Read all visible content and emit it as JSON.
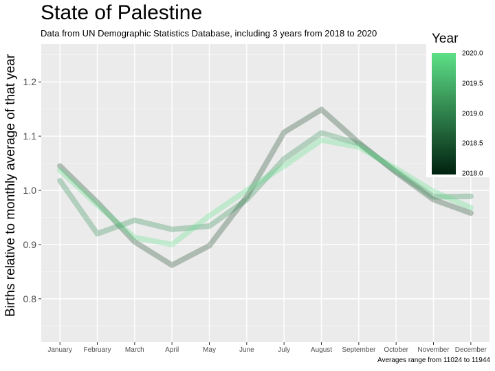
{
  "title": "State of Palestine",
  "subtitle": "Data from UN Demographic Statistics Database, including 3 years from 2018 to 2020",
  "caption": "Averages range from 11024 to 11944",
  "legend": {
    "title": "Year",
    "ticks": [
      "2020.0",
      "2019.5",
      "2019.0",
      "2018.5",
      "2018.0"
    ],
    "low_color": "#00210f",
    "high_color": "#5de087"
  },
  "chart_data": {
    "type": "line",
    "title": "State of Palestine",
    "ylabel": "Births relative to monthly average of that year",
    "ylim": [
      0.72,
      1.27
    ],
    "y_ticks": [
      0.8,
      0.9,
      1.0,
      1.1,
      1.2
    ],
    "y_tick_labels": [
      "0.8",
      "0.9",
      "1.0",
      "1.1",
      "1.2"
    ],
    "categories": [
      "January",
      "February",
      "March",
      "April",
      "May",
      "June",
      "July",
      "August",
      "September",
      "October",
      "November",
      "December"
    ],
    "grid": true,
    "legend_position": "top-right",
    "series": [
      {
        "year": 2018,
        "color": "#1b4a2c",
        "values": [
          1.045,
          0.978,
          0.905,
          0.862,
          0.898,
          0.988,
          1.107,
          1.149,
          1.088,
          1.033,
          0.983,
          0.958
        ]
      },
      {
        "year": 2019,
        "color": "#2f8a52",
        "values": [
          1.018,
          0.92,
          0.945,
          0.928,
          0.934,
          0.983,
          1.058,
          1.106,
          1.086,
          1.035,
          0.988,
          0.989
        ]
      },
      {
        "year": 2020,
        "color": "#5de087",
        "values": [
          1.037,
          0.973,
          0.913,
          0.9,
          0.953,
          1.0,
          1.045,
          1.093,
          1.08,
          1.04,
          0.998,
          0.968
        ]
      }
    ]
  }
}
